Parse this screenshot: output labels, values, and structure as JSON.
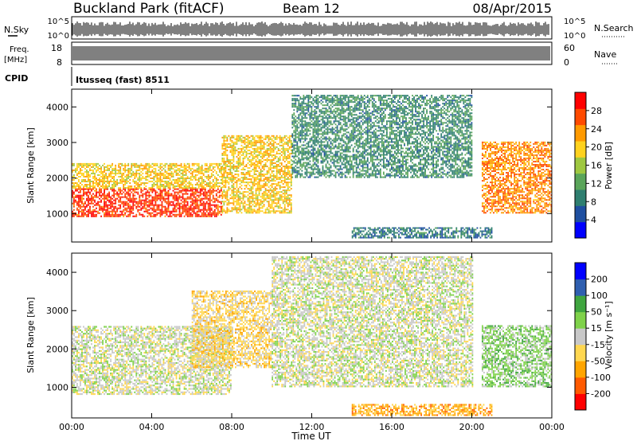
{
  "header": {
    "site": "Buckland Park (fitACF)",
    "beam": "Beam 12",
    "date": "08/Apr/2015"
  },
  "status_panels": {
    "noise": {
      "left_label": "N.Sky",
      "left_ticks": [
        "10^5",
        "10^0"
      ],
      "right_label": "N.Search",
      "right_ticks": [
        "10^5",
        "10^0"
      ]
    },
    "frequency": {
      "left_label_line1": "Freq.",
      "left_label_line2": "[MHz]",
      "left_ticks": [
        "18",
        "8"
      ],
      "right_label": "Nave",
      "right_ticks": [
        "60",
        "0"
      ]
    },
    "cpid": {
      "label": "CPID",
      "text": "Itusseq (fast) 8511"
    }
  },
  "chart_data": [
    {
      "type": "heatmap",
      "name": "power",
      "ylabel": "Slant Range [km]",
      "ylim": [
        200,
        4500
      ],
      "yticks": [
        "1000",
        "2000",
        "3000",
        "4000"
      ],
      "xlim": [
        0,
        24
      ],
      "colorbar": {
        "label": "Power [dB]",
        "range": [
          0,
          32
        ],
        "ticks": [
          "4",
          "8",
          "12",
          "16",
          "20",
          "24",
          "28"
        ],
        "colors": [
          "#0000ff",
          "#1f4fa0",
          "#2f7f70",
          "#5aa55a",
          "#9fc840",
          "#ffd21e",
          "#ff9a00",
          "#ff4a00",
          "#ff0000"
        ]
      },
      "features": [
        {
          "hours": [
            0,
            7.5
          ],
          "range_km": [
            900,
            1700
          ],
          "power_db": 28
        },
        {
          "hours": [
            0,
            7.5
          ],
          "range_km": [
            1700,
            2400
          ],
          "power_db": 20
        },
        {
          "hours": [
            7.5,
            11
          ],
          "range_km": [
            1000,
            3200
          ],
          "power_db": 20
        },
        {
          "hours": [
            11,
            20
          ],
          "range_km": [
            2000,
            4300
          ],
          "power_db": 10
        },
        {
          "hours": [
            20.5,
            24
          ],
          "range_km": [
            1000,
            3000
          ],
          "power_db": 24
        },
        {
          "hours": [
            14,
            21
          ],
          "range_km": [
            300,
            600
          ],
          "power_db": 8
        }
      ]
    },
    {
      "type": "heatmap",
      "name": "velocity",
      "ylabel": "Slant Range [km]",
      "ylim": [
        200,
        4500
      ],
      "yticks": [
        "1000",
        "2000",
        "3000",
        "4000"
      ],
      "xlabel": "Time UT",
      "xticks": [
        "00:00",
        "04:00",
        "08:00",
        "12:00",
        "16:00",
        "20:00",
        "00:00"
      ],
      "xlim": [
        0,
        24
      ],
      "colorbar": {
        "label": "Velocity [m s⁻¹]",
        "range": [
          -250,
          250
        ],
        "ticks": [
          "200",
          "100",
          "50",
          "15",
          "-15",
          "-50",
          "-100",
          "-200"
        ],
        "colors": [
          "#ff0000",
          "#ff5a00",
          "#ffa500",
          "#ffd750",
          "#c8c8c8",
          "#7fd24a",
          "#3fa53f",
          "#2f5fb0",
          "#0000ff"
        ]
      },
      "features": [
        {
          "hours": [
            0,
            8
          ],
          "range_km": [
            800,
            2600
          ],
          "velocity_ms": 0
        },
        {
          "hours": [
            6,
            10
          ],
          "range_km": [
            1500,
            3500
          ],
          "velocity_ms": -50
        },
        {
          "hours": [
            10,
            20
          ],
          "range_km": [
            1000,
            4400
          ],
          "velocity_ms": 0
        },
        {
          "hours": [
            20.5,
            24
          ],
          "range_km": [
            1000,
            2600
          ],
          "velocity_ms": 50
        },
        {
          "hours": [
            14,
            21
          ],
          "range_km": [
            250,
            550
          ],
          "velocity_ms": -100
        }
      ]
    }
  ]
}
